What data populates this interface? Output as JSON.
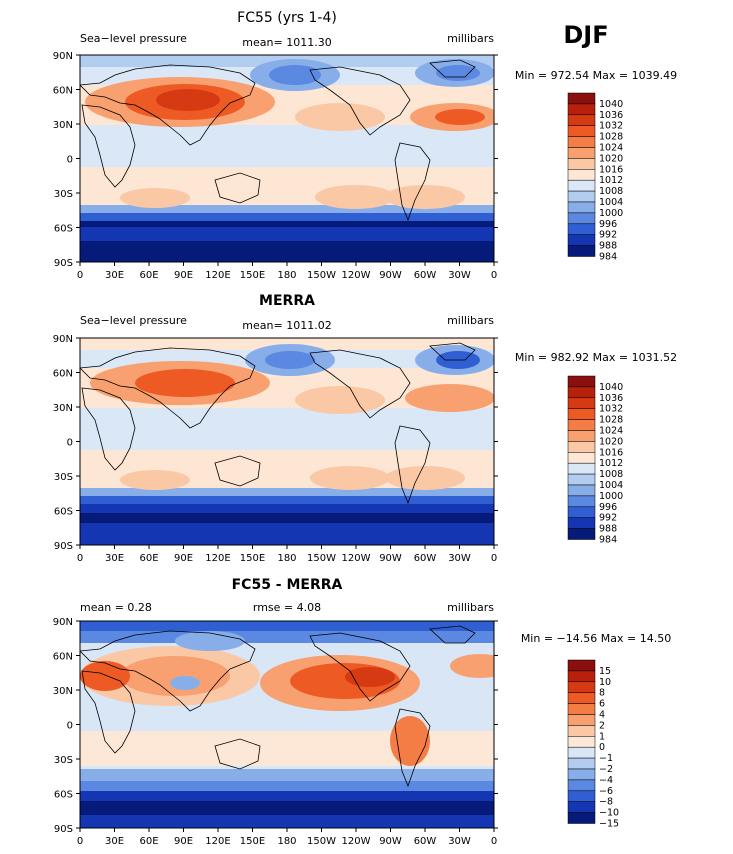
{
  "season_label": "DJF",
  "latitude_ticks": [
    "90N",
    "60N",
    "30N",
    "0",
    "30S",
    "60S",
    "90S"
  ],
  "longitude_ticks": [
    "0",
    "30E",
    "60E",
    "90E",
    "120E",
    "150E",
    "180",
    "150W",
    "120W",
    "90W",
    "60W",
    "30W",
    "0"
  ],
  "panels": [
    {
      "id": "fc55",
      "title": "FC55 (yrs 1-4)",
      "left_label": "Sea−level pressure",
      "center_label": "mean=  1011.30",
      "right_label": "millibars",
      "stats": "Min = 972.54  Max = 1039.49",
      "colorbar_labels": [
        "1040",
        "1036",
        "1032",
        "1028",
        "1024",
        "1020",
        "1016",
        "1012",
        "1008",
        "1004",
        "1000",
        "996",
        "992",
        "988",
        "984"
      ]
    },
    {
      "id": "merra",
      "title": "MERRA",
      "left_label": "Sea−level pressure",
      "center_label": "mean=  1011.02",
      "right_label": "millibars",
      "stats": "Min = 982.92  Max = 1031.52",
      "colorbar_labels": [
        "1040",
        "1036",
        "1032",
        "1028",
        "1024",
        "1020",
        "1016",
        "1012",
        "1008",
        "1004",
        "1000",
        "996",
        "992",
        "988",
        "984"
      ]
    },
    {
      "id": "diff",
      "title": "FC55 - MERRA",
      "left_label": "mean =     0.28",
      "center_label": "rmse =     4.08",
      "right_label": "millibars",
      "stats": "Min = −14.56  Max =   14.50",
      "colorbar_labels": [
        "15",
        "10",
        "8",
        "6",
        "4",
        "2",
        "1",
        "0",
        "−1",
        "−2",
        "−4",
        "−6",
        "−8",
        "−10",
        "−15"
      ]
    }
  ],
  "colors": {
    "pressure_scale": [
      "#8a0f0f",
      "#b8200c",
      "#d63a12",
      "#ee5a24",
      "#f47c45",
      "#f8a070",
      "#fbc8a6",
      "#fde6d3",
      "#d9e7f7",
      "#b3cdf1",
      "#88aeea",
      "#5b88e0",
      "#2f5fd2",
      "#1436b3",
      "#061a7a"
    ],
    "diff_scale": [
      "#8a0f0f",
      "#b8200c",
      "#d63a12",
      "#ee5a24",
      "#f47c45",
      "#f8a070",
      "#fbc8a6",
      "#fde8d8",
      "#d8e6f6",
      "#b3cdf1",
      "#88aeea",
      "#5b88e0",
      "#2f5fd2",
      "#1436b3",
      "#061a7a"
    ]
  }
}
